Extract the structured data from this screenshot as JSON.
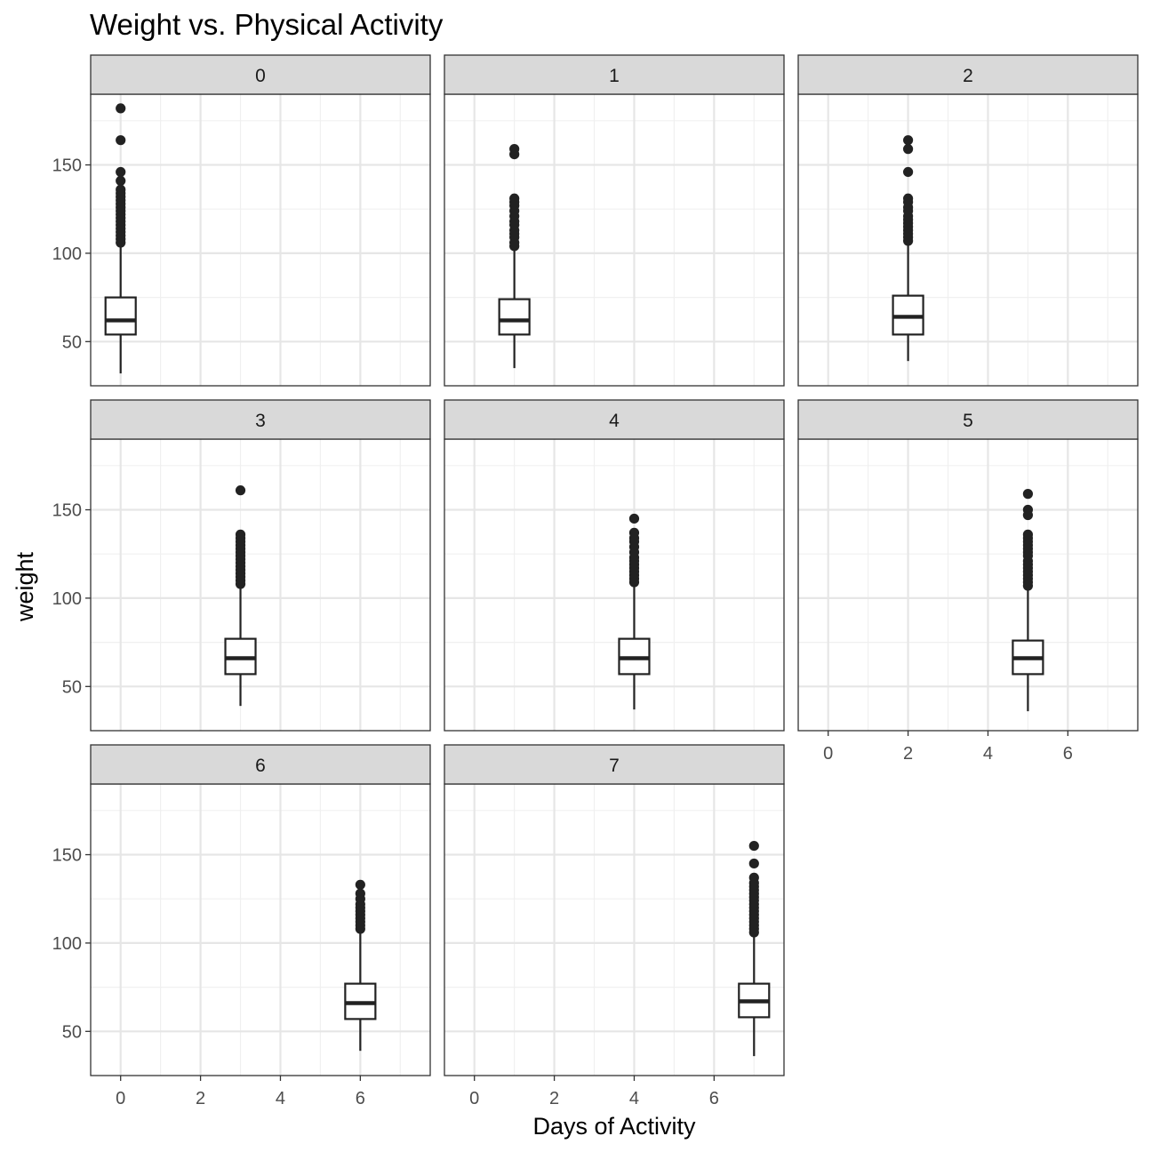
{
  "chart_data": {
    "type": "boxplot",
    "title": "Weight vs. Physical Activity",
    "xlabel": "Days of Activity",
    "ylabel": "weight",
    "facet_by": "days",
    "xlim": [
      -0.75,
      7.75
    ],
    "ylim": [
      25,
      190
    ],
    "x_ticks": [
      0,
      2,
      4,
      6
    ],
    "y_ticks": [
      50,
      100,
      150
    ],
    "grid": true,
    "facets": [
      {
        "label": "0",
        "x": 0,
        "whisker_low": 32,
        "q1": 54,
        "median": 62,
        "q3": 75,
        "whisker_high": 105,
        "outliers": [
          182,
          164,
          146,
          141,
          136,
          134,
          132,
          130,
          128,
          126,
          124,
          122,
          120,
          118,
          116,
          114,
          112,
          110,
          108,
          106
        ]
      },
      {
        "label": "1",
        "x": 1,
        "whisker_low": 35,
        "q1": 54,
        "median": 62,
        "q3": 74,
        "whisker_high": 103,
        "outliers": [
          159,
          156,
          131,
          129,
          127,
          124,
          121,
          118,
          116,
          113,
          111,
          109,
          106,
          104
        ]
      },
      {
        "label": "2",
        "x": 2,
        "whisker_low": 39,
        "q1": 54,
        "median": 64,
        "q3": 76,
        "whisker_high": 106,
        "outliers": [
          164,
          159,
          146,
          131,
          129,
          126,
          124,
          121,
          119,
          117,
          115,
          113,
          111,
          109,
          107
        ]
      },
      {
        "label": "3",
        "x": 3,
        "whisker_low": 39,
        "q1": 57,
        "median": 66,
        "q3": 77,
        "whisker_high": 107,
        "outliers": [
          161,
          136,
          134,
          132,
          130,
          128,
          126,
          124,
          122,
          120,
          118,
          116,
          114,
          112,
          110,
          108
        ]
      },
      {
        "label": "4",
        "x": 4,
        "whisker_low": 37,
        "q1": 57,
        "median": 66,
        "q3": 77,
        "whisker_high": 107,
        "outliers": [
          145,
          137,
          134,
          132,
          129,
          126,
          123,
          121,
          119,
          117,
          115,
          113,
          111,
          109
        ]
      },
      {
        "label": "5",
        "x": 5,
        "whisker_low": 36,
        "q1": 57,
        "median": 66,
        "q3": 76,
        "whisker_high": 106,
        "outliers": [
          159,
          150,
          147,
          136,
          134,
          132,
          130,
          128,
          126,
          124,
          121,
          119,
          117,
          115,
          113,
          111,
          109,
          107
        ]
      },
      {
        "label": "6",
        "x": 6,
        "whisker_low": 39,
        "q1": 57,
        "median": 66,
        "q3": 77,
        "whisker_high": 107,
        "outliers": [
          133,
          128,
          125,
          122,
          120,
          118,
          116,
          114,
          112,
          110,
          108
        ]
      },
      {
        "label": "7",
        "x": 7,
        "whisker_low": 36,
        "q1": 58,
        "median": 67,
        "q3": 77,
        "whisker_high": 104,
        "outliers": [
          155,
          145,
          137,
          134,
          132,
          130,
          128,
          126,
          124,
          122,
          120,
          118,
          116,
          114,
          112,
          110,
          108,
          106
        ]
      }
    ]
  }
}
